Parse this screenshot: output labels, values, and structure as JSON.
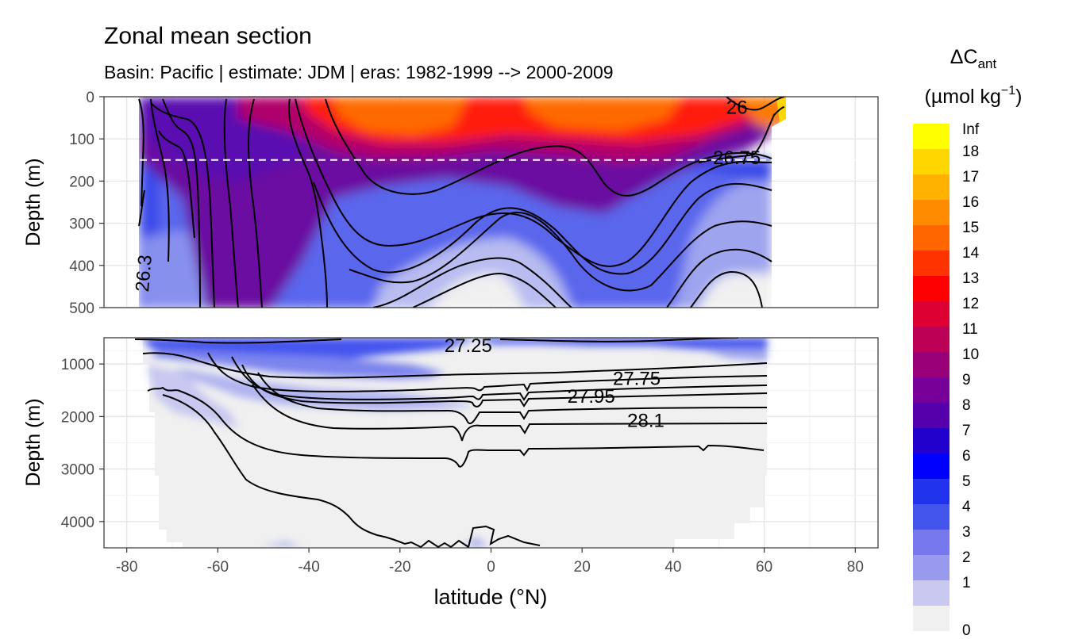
{
  "chart_data": {
    "type": "contour-section",
    "title": "Zonal mean section",
    "subtitle": "Basin: Pacific | estimate: JDM  | eras: 1982-1999 --> 2000-2009",
    "xlabel": "latitude (°N)",
    "ylabel": "Depth (m)",
    "xlim": [
      -85,
      85
    ],
    "x_ticks": [
      -80,
      -60,
      -40,
      -20,
      0,
      20,
      40,
      60,
      80
    ],
    "x_tick_labels": [
      "-80",
      "-60",
      "-40",
      "-20",
      "0",
      "20",
      "40",
      "60",
      "80"
    ],
    "panels": [
      {
        "name": "upper",
        "ylim": [
          0,
          500
        ],
        "y_ticks": [
          0,
          100,
          200,
          300,
          400,
          500
        ],
        "y_tick_labels": [
          "0",
          "100",
          "200",
          "300",
          "400",
          "500"
        ],
        "reference_depth": 150
      },
      {
        "name": "lower",
        "ylim": [
          500,
          4500
        ],
        "y_ticks": [
          1000,
          2000,
          3000,
          4000
        ],
        "y_tick_labels": [
          "1000",
          "2000",
          "3000",
          "4000"
        ]
      }
    ],
    "colorbar": {
      "title_main": "ΔC",
      "title_sub": "ant",
      "unit_prefix": "(µmol kg",
      "unit_sup": "−1",
      "unit_suffix": ")",
      "levels": [
        "Inf",
        "18",
        "17",
        "16",
        "15",
        "14",
        "13",
        "12",
        "11",
        "10",
        "9",
        "8",
        "7",
        "6",
        "5",
        "4",
        "3",
        "2",
        "1",
        "0"
      ],
      "colors": [
        "#ffff00",
        "#ffd700",
        "#ffb300",
        "#ff8c00",
        "#ff6600",
        "#ff3300",
        "#ff0000",
        "#dd0033",
        "#bb0055",
        "#990077",
        "#770099",
        "#5500aa",
        "#2200cc",
        "#0000ff",
        "#2233ee",
        "#4455ee",
        "#7777ee",
        "#9999ee",
        "#c8c8f0",
        "#f0f0f0"
      ]
    },
    "isopycnals": [
      {
        "label": "26",
        "lat": 54,
        "depth": 25
      },
      {
        "label": "26.75",
        "lat": 54,
        "depth": 145
      },
      {
        "label": "26.3",
        "lat": -77,
        "depth": 420
      },
      {
        "label": "27.25",
        "lat": -5,
        "depth": 650
      },
      {
        "label": "27.75",
        "lat": 32,
        "depth": 1280
      },
      {
        "label": "27.95",
        "lat": 22,
        "depth": 1620
      },
      {
        "label": "28.1",
        "lat": 34,
        "depth": 2080
      }
    ]
  }
}
